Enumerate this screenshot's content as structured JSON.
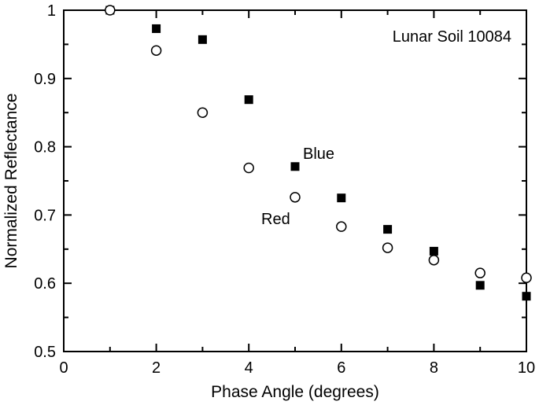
{
  "chart_data": {
    "type": "scatter",
    "title": "",
    "xlabel": "Phase Angle (degrees)",
    "ylabel": "Normalized Reflectance",
    "xlim": [
      0,
      10
    ],
    "ylim": [
      0.5,
      1.0
    ],
    "x_ticks": [
      "0",
      "2",
      "4",
      "6",
      "8",
      "10"
    ],
    "y_ticks": [
      "0.5",
      "0.6",
      "0.7",
      "0.8",
      "0.9",
      "1"
    ],
    "grid": false,
    "annotations": {
      "sample": "Lunar Soil 10084",
      "blue": "Blue",
      "red": "Red"
    },
    "series": [
      {
        "name": "Blue",
        "marker": "filled-square",
        "color": "#000000",
        "x": [
          1,
          2,
          3,
          4,
          5,
          6,
          7,
          8,
          9,
          10
        ],
        "y": [
          1.0,
          0.973,
          0.957,
          0.869,
          0.771,
          0.725,
          0.679,
          0.647,
          0.597,
          0.581
        ]
      },
      {
        "name": "Red",
        "marker": "open-circle",
        "color": "#000000",
        "x": [
          1,
          2,
          3,
          4,
          5,
          6,
          7,
          8,
          9,
          10
        ],
        "y": [
          1.0,
          0.941,
          0.85,
          0.769,
          0.726,
          0.683,
          0.652,
          0.634,
          0.615,
          0.608
        ]
      }
    ]
  }
}
